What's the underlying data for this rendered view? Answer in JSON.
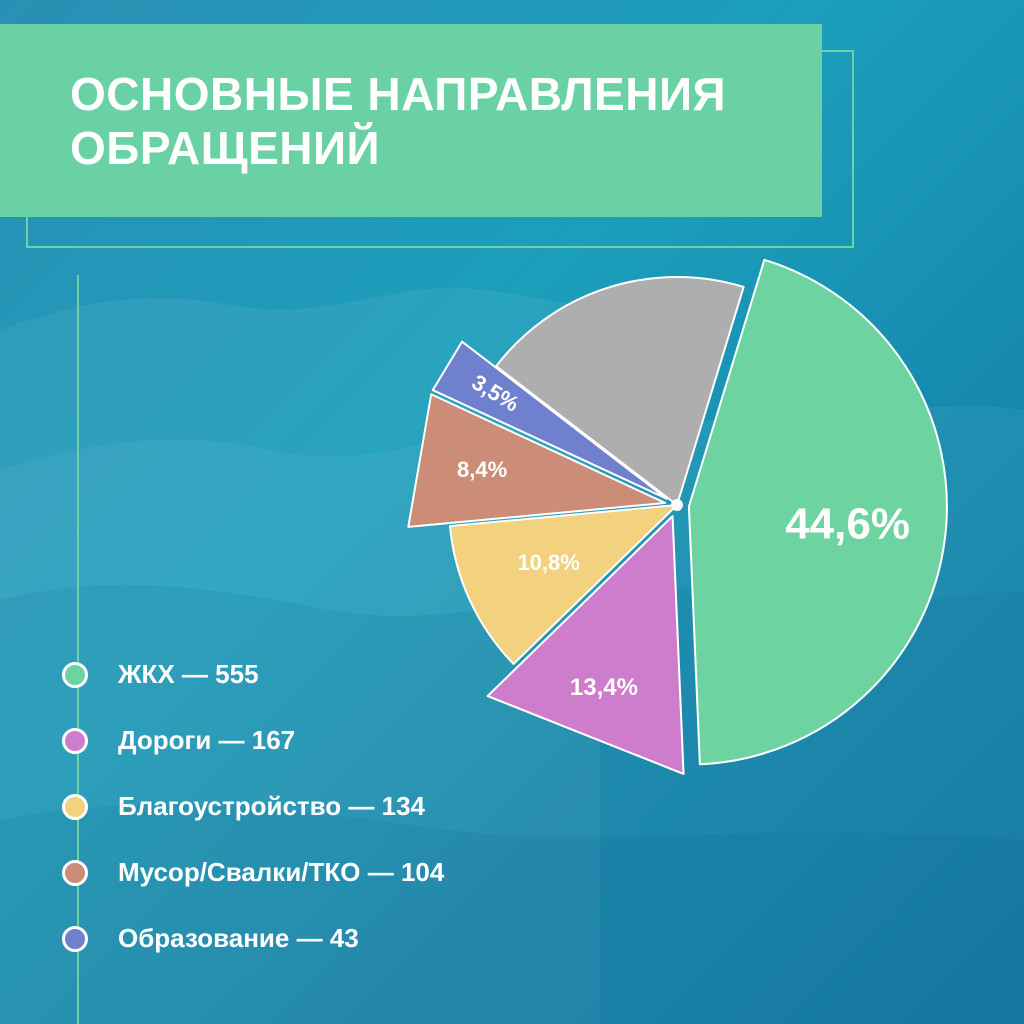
{
  "title": "ОСНОВНЫЕ НАПРАВЛЕНИЯ ОБРАЩЕНИЙ",
  "colors": {
    "accent": "#69d1a4",
    "background": "#1a8fb3",
    "text": "#ffffff"
  },
  "chart_data": {
    "type": "pie",
    "slices": [
      {
        "value": 44.6,
        "label": "44,6%",
        "color": "#6dd3a0",
        "legend": "ЖКХ — 555",
        "exploded": true
      },
      {
        "value": 13.4,
        "label": "13,4%",
        "color": "#cd7dcb",
        "legend": "Дороги — 167",
        "exploded": true
      },
      {
        "value": 10.8,
        "label": "10,8%",
        "color": "#f2d17f",
        "legend": "Благоустройство — 134",
        "exploded": false
      },
      {
        "value": 8.4,
        "label": "8,4%",
        "color": "#cb8d78",
        "legend": "Мусор/Свалки/ТКО — 104",
        "exploded": true
      },
      {
        "value": 3.5,
        "label": "3,5%",
        "color": "#6f80cf",
        "legend": "Образование — 43",
        "exploded": true
      },
      {
        "value": 19.3,
        "label": "",
        "color": "#aeaeae",
        "legend": "",
        "exploded": false
      }
    ]
  }
}
